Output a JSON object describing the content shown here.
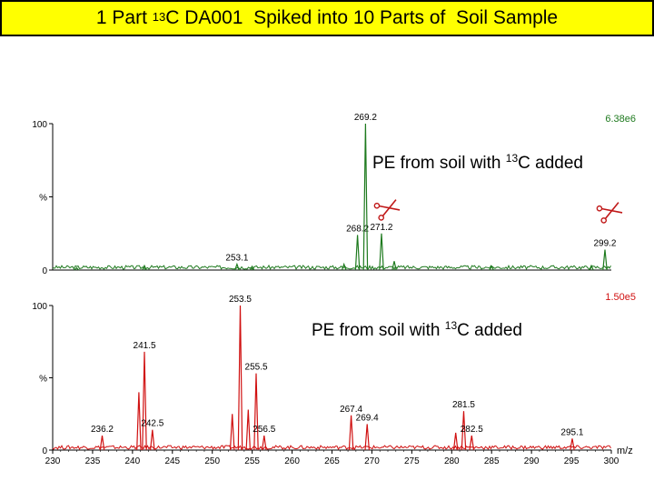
{
  "header": {
    "title_pre": "1 Part ",
    "title_sup": "13",
    "title_post": "C DA001  Spiked into 10 Parts of  Soil Sample",
    "bg": "#ffff00"
  },
  "chart_data": [
    {
      "type": "line",
      "name": "top-spectrum",
      "color": "#1e7a1e",
      "xlim": [
        230,
        300
      ],
      "ylim": [
        0,
        100
      ],
      "y_ticks": [
        "100",
        "%",
        "0"
      ],
      "intensity_label": "6.38e6",
      "annotation": {
        "pre": "PE from soil with ",
        "sup": "13",
        "post": "C added"
      },
      "peaks": [
        {
          "x": 233.0,
          "y": 1.5
        },
        {
          "x": 241.5,
          "y": 3
        },
        {
          "x": 253.1,
          "y": 4,
          "label": "253.1"
        },
        {
          "x": 255.0,
          "y": 2.5
        },
        {
          "x": 266.5,
          "y": 4
        },
        {
          "x": 268.2,
          "y": 24,
          "label": "268.2"
        },
        {
          "x": 269.2,
          "y": 100,
          "label": "269.2"
        },
        {
          "x": 271.2,
          "y": 25,
          "label": "271.2"
        },
        {
          "x": 272.8,
          "y": 6
        },
        {
          "x": 285.0,
          "y": 2.5
        },
        {
          "x": 297.5,
          "y": 3
        },
        {
          "x": 299.2,
          "y": 14,
          "label": "299.2"
        }
      ]
    },
    {
      "type": "line",
      "name": "bottom-spectrum",
      "color": "#d01010",
      "xlim": [
        230,
        300
      ],
      "ylim": [
        0,
        100
      ],
      "y_ticks": [
        "100",
        "%",
        "0"
      ],
      "intensity_label": "1.50e5",
      "annotation": {
        "pre": "PE from soil with ",
        "sup": "13",
        "post": "C added"
      },
      "xlabel": "m/z",
      "x_ticks": [
        "230",
        "235",
        "240",
        "245",
        "250",
        "255",
        "260",
        "265",
        "270",
        "275",
        "280",
        "285",
        "290",
        "295",
        "300"
      ],
      "peaks": [
        {
          "x": 236.2,
          "y": 10,
          "label": "236.2"
        },
        {
          "x": 240.8,
          "y": 40
        },
        {
          "x": 241.5,
          "y": 68,
          "label": "241.5"
        },
        {
          "x": 242.5,
          "y": 14,
          "label": "242.5"
        },
        {
          "x": 252.5,
          "y": 25
        },
        {
          "x": 253.5,
          "y": 100,
          "label": "253.5"
        },
        {
          "x": 254.5,
          "y": 28
        },
        {
          "x": 255.5,
          "y": 53,
          "label": "255.5"
        },
        {
          "x": 256.5,
          "y": 10,
          "label": "256.5"
        },
        {
          "x": 267.4,
          "y": 24,
          "label": "267.4"
        },
        {
          "x": 269.4,
          "y": 18,
          "label": "269.4"
        },
        {
          "x": 280.5,
          "y": 12
        },
        {
          "x": 281.5,
          "y": 27,
          "label": "281.5"
        },
        {
          "x": 282.5,
          "y": 10,
          "label": "282.5"
        },
        {
          "x": 295.1,
          "y": 8,
          "label": "295.1"
        }
      ]
    }
  ]
}
